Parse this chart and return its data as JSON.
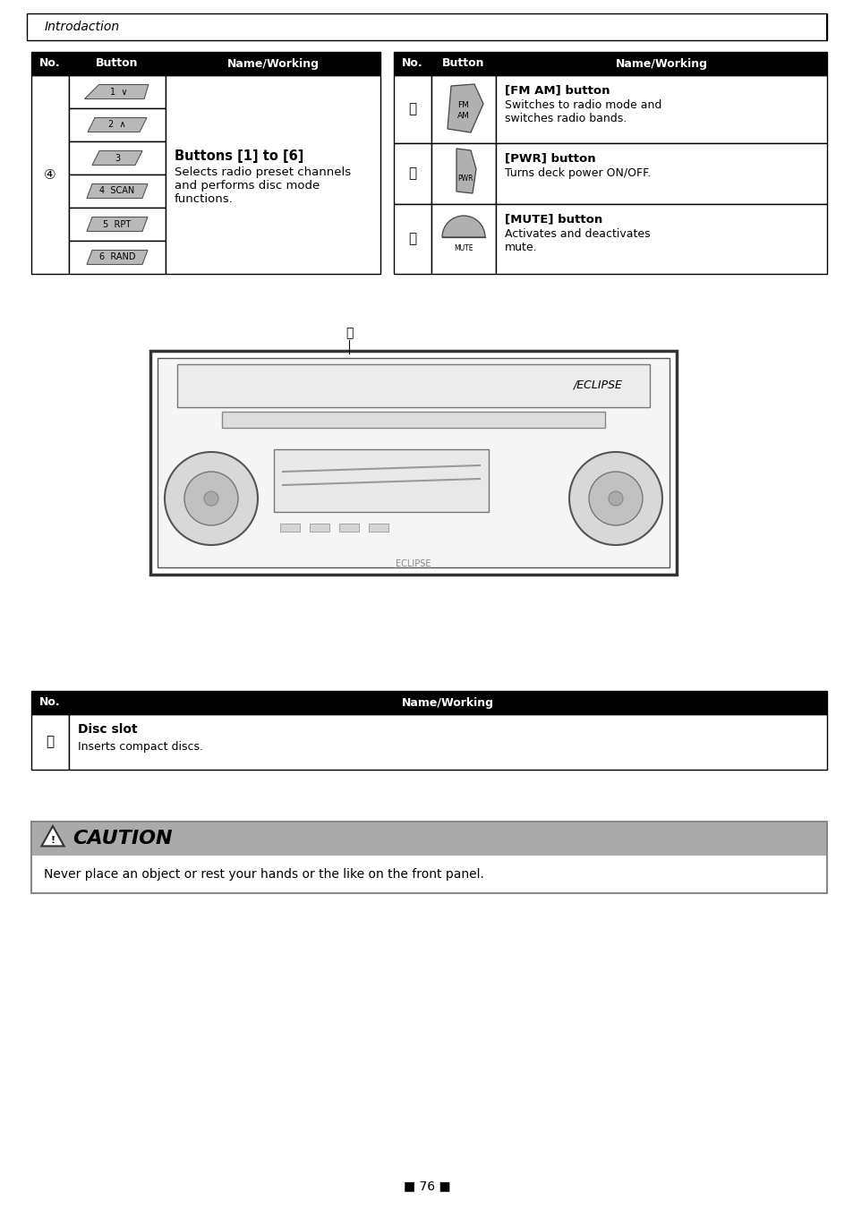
{
  "title": "Introdaction",
  "page_number": "76",
  "background_color": "#ffffff",
  "table1": {
    "no_label": "④",
    "button_labels": [
      "1  ∨",
      "2  ∧",
      "3",
      "4  SCAN",
      "5  RPT",
      "6  RAND"
    ],
    "bold_text": "Buttons [1] to [6]",
    "normal_text": "Selects radio preset channels\nand performs disc mode\nfunctions."
  },
  "table2": {
    "rows": [
      {
        "no": "⑭",
        "bold_text": "[FM AM] button",
        "normal_text": "Switches to radio mode and\nswitches radio bands."
      },
      {
        "no": "⑮",
        "bold_text": "[PWR] button",
        "normal_text": "Turns deck power ON/OFF."
      },
      {
        "no": "⑯",
        "bold_text": "[MUTE] button",
        "normal_text": "Activates and deactivates\nmute."
      }
    ]
  },
  "table3": {
    "no": "⑱",
    "bold_text": "Disc slot",
    "normal_text": "Inserts compact discs."
  },
  "caution": {
    "title": "CAUTION",
    "text": "Never place an object or rest your hands or the like on the front panel."
  }
}
